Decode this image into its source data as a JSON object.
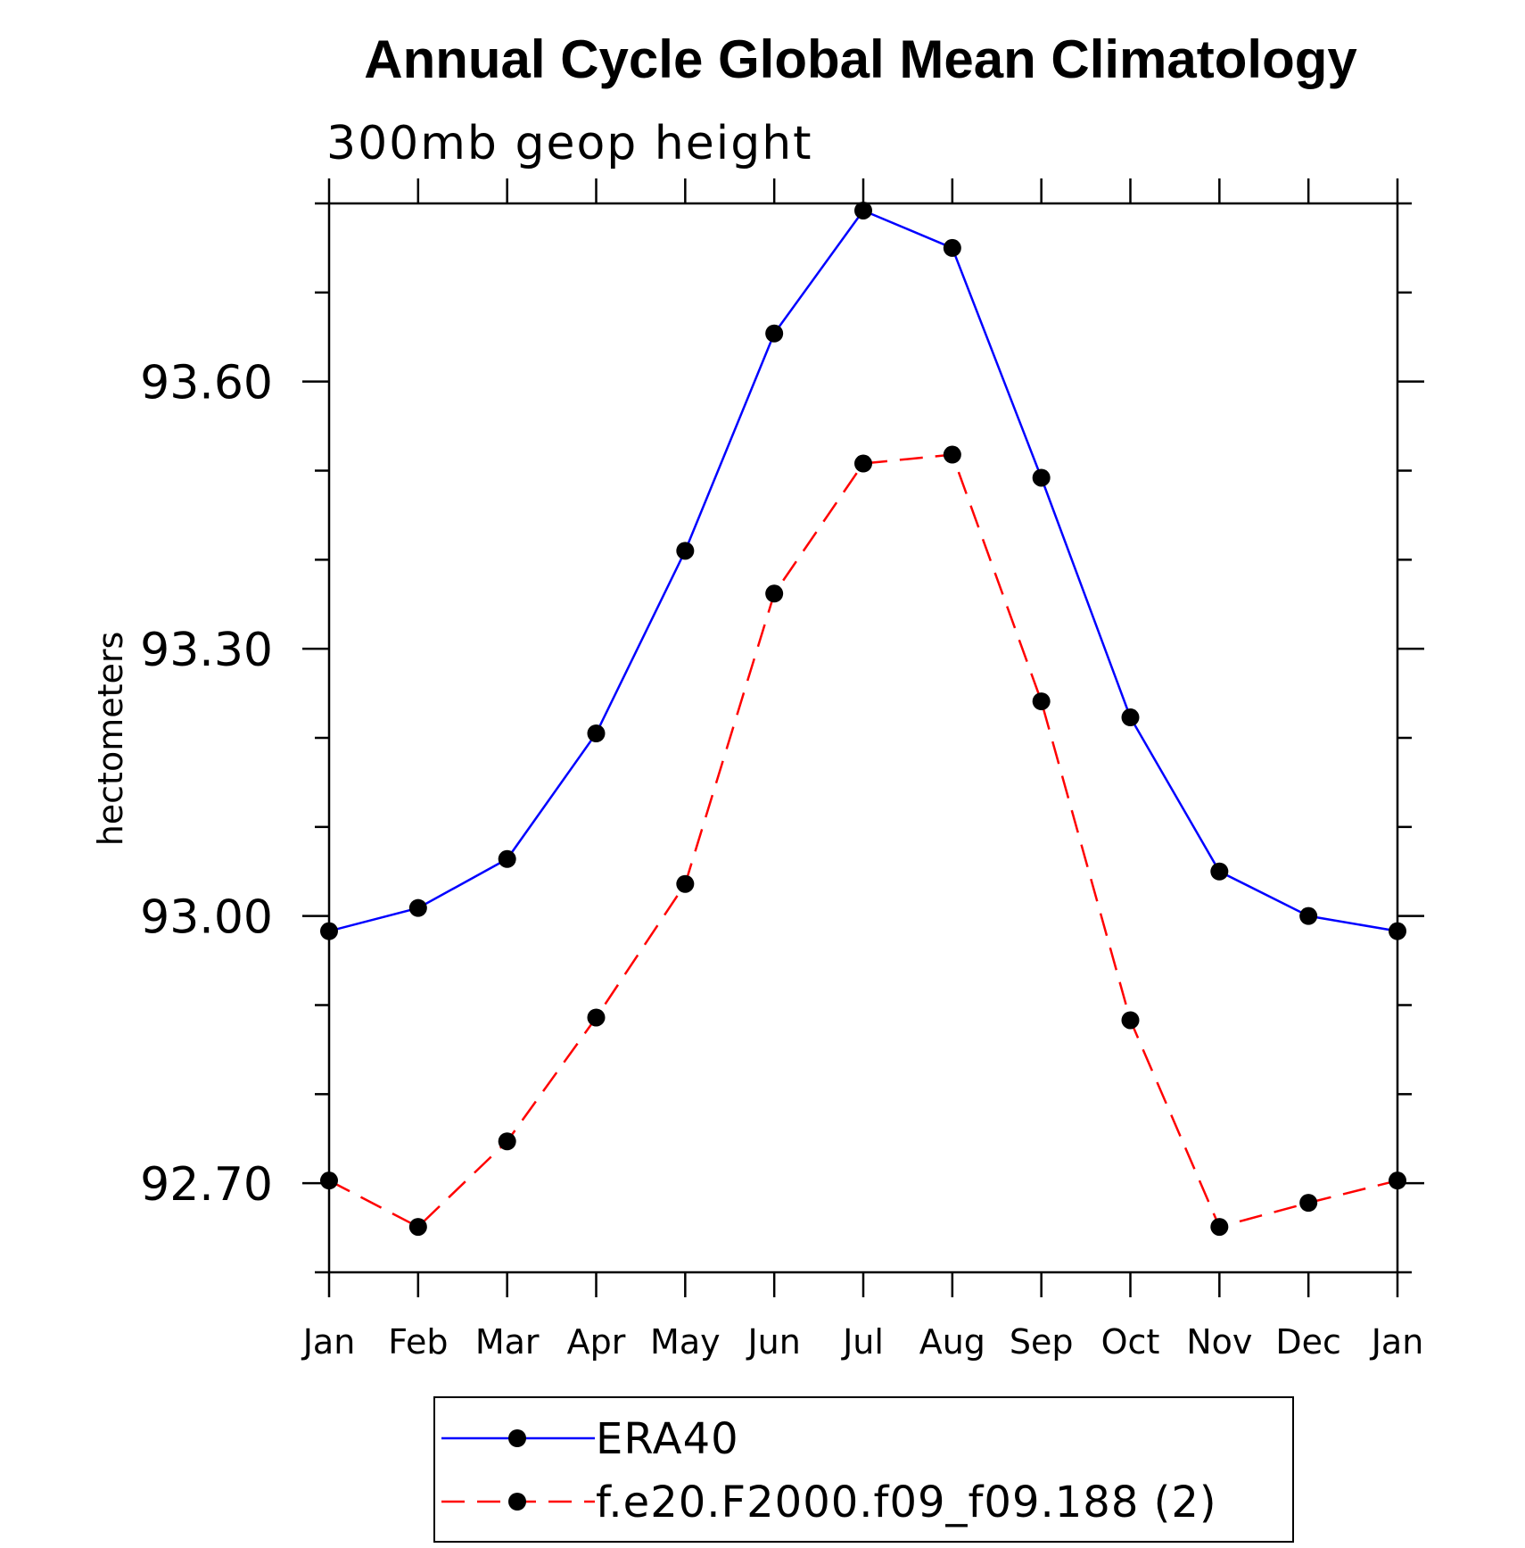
{
  "chart_data": {
    "type": "line",
    "title": "Annual Cycle Global Mean Climatology",
    "subtitle": "300mb geop height",
    "ylabel": "hectometers",
    "xlabel": "",
    "categories": [
      "Jan",
      "Feb",
      "Mar",
      "Apr",
      "May",
      "Jun",
      "Jul",
      "Aug",
      "Sep",
      "Oct",
      "Nov",
      "Dec",
      "Jan"
    ],
    "ylim": [
      92.6,
      93.8
    ],
    "yticks": [
      92.7,
      93.0,
      93.3,
      93.6
    ],
    "ytick_labels": [
      "92.70",
      "93.00",
      "93.30",
      "93.60"
    ],
    "grid": false,
    "legend_position": "bottom-center",
    "series": [
      {
        "name": "ERA40",
        "color": "#0000ff",
        "line_style": "solid",
        "marker": "filled-circle",
        "values": [
          92.983,
          93.009,
          93.064,
          93.205,
          93.41,
          93.654,
          93.792,
          93.75,
          93.492,
          93.223,
          93.05,
          93.0,
          92.983
        ]
      },
      {
        "name": "f.e20.F2000.f09_f09.188 (2)",
        "color": "#ff0000",
        "line_style": "dashed",
        "marker": "filled-circle",
        "values": [
          92.703,
          92.651,
          92.747,
          92.886,
          93.036,
          93.362,
          93.508,
          93.518,
          93.241,
          92.883,
          92.651,
          92.678,
          92.703
        ]
      }
    ]
  }
}
